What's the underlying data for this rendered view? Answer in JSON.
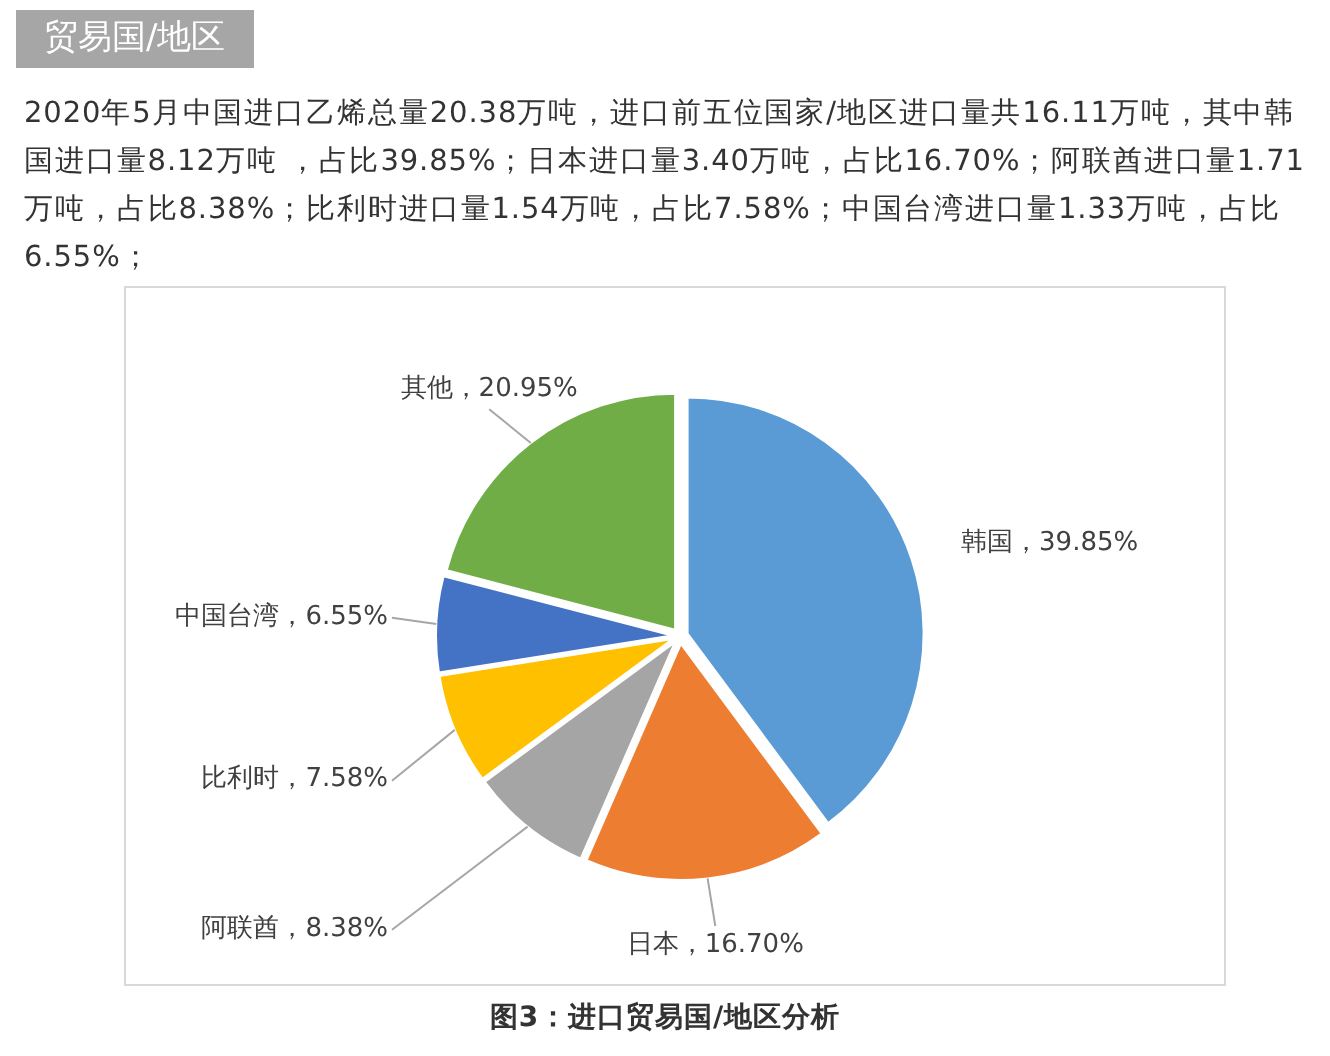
{
  "chart_data": {
    "type": "pie",
    "title": "贸易国/地区",
    "subtitle": "2020年5月中国进口乙烯总量20.38万吨，进口前五位国家/地区进口量共16.11万吨，其中韩国进口量8.12万吨 ，占比39.85%；日本进口量3.40万吨，占比16.70%；阿联酋进口量1.71万吨，占比8.38%；比利时进口量1.54万吨，占比7.58%；中国台湾进口量1.33万吨，占比6.55%；",
    "categories": [
      "韩国",
      "日本",
      "阿联酋",
      "比利时",
      "中国台湾",
      "其他"
    ],
    "values": [
      39.85,
      16.7,
      8.38,
      7.58,
      6.55,
      20.95
    ],
    "colors": [
      "#5b9bd5",
      "#ed7d31",
      "#a5a5a5",
      "#ffc000",
      "#4472c4",
      "#70ad47"
    ],
    "value_labels": [
      "，39.85%",
      "，16.70%",
      "，8.38%",
      "，7.58%",
      "，6.55%",
      "，20.95%"
    ],
    "annotations": [
      "图3：进口贸易国/地区分析"
    ]
  }
}
